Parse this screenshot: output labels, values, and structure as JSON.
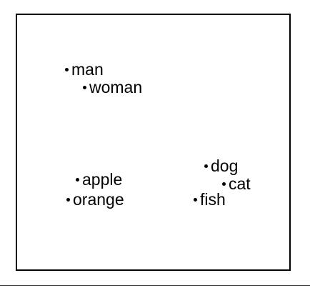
{
  "words": {
    "man": "man",
    "woman": "woman",
    "apple": "apple",
    "orange": "orange",
    "dog": "dog",
    "cat": "cat",
    "fish": "fish"
  },
  "colors": {
    "ink": "#000000",
    "background": "#ffffff"
  }
}
